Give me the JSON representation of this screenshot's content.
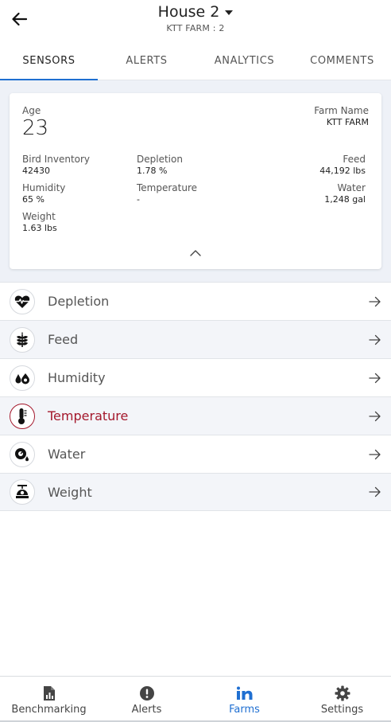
{
  "header": {
    "title": "House 2",
    "subtitle": "KTT FARM : 2"
  },
  "tabs": [
    {
      "label": "SENSORS",
      "active": true
    },
    {
      "label": "ALERTS",
      "active": false
    },
    {
      "label": "ANALYTICS",
      "active": false
    },
    {
      "label": "COMMENTS",
      "active": false
    }
  ],
  "summary": {
    "age_label": "Age",
    "age_value": "23",
    "farm_name_label": "Farm Name",
    "farm_name_value": "KTT FARM",
    "bird_inventory_label": "Bird Inventory",
    "bird_inventory_value": "42430",
    "depletion_label": "Depletion",
    "depletion_value": "1.78 %",
    "feed_label": "Feed",
    "feed_value": "44,192 lbs",
    "humidity_label": "Humidity",
    "humidity_value": "65 %",
    "temperature_label": "Temperature",
    "temperature_value": "-",
    "water_label": "Water",
    "water_value": "1,248 gal",
    "weight_label": "Weight",
    "weight_value": "1.63 lbs"
  },
  "sensors": [
    {
      "label": "Depletion",
      "icon": "heart-pulse-icon",
      "alert": false
    },
    {
      "label": "Feed",
      "icon": "wheat-icon",
      "alert": false
    },
    {
      "label": "Humidity",
      "icon": "droplets-icon",
      "alert": false
    },
    {
      "label": "Temperature",
      "icon": "thermometer-icon",
      "alert": true
    },
    {
      "label": "Water",
      "icon": "water-meter-icon",
      "alert": false
    },
    {
      "label": "Weight",
      "icon": "scale-icon",
      "alert": false
    }
  ],
  "colors": {
    "accent": "#1f6fd1",
    "alert": "#a4182c",
    "summary_bg": "#eef1f7"
  },
  "bottom_nav": [
    {
      "label": "Benchmarking",
      "icon": "report-icon",
      "active": false
    },
    {
      "label": "Alerts",
      "icon": "alert-circle-icon",
      "active": false
    },
    {
      "label": "Farms",
      "icon": "farms-icon",
      "active": true
    },
    {
      "label": "Settings",
      "icon": "gear-icon",
      "active": false
    }
  ]
}
